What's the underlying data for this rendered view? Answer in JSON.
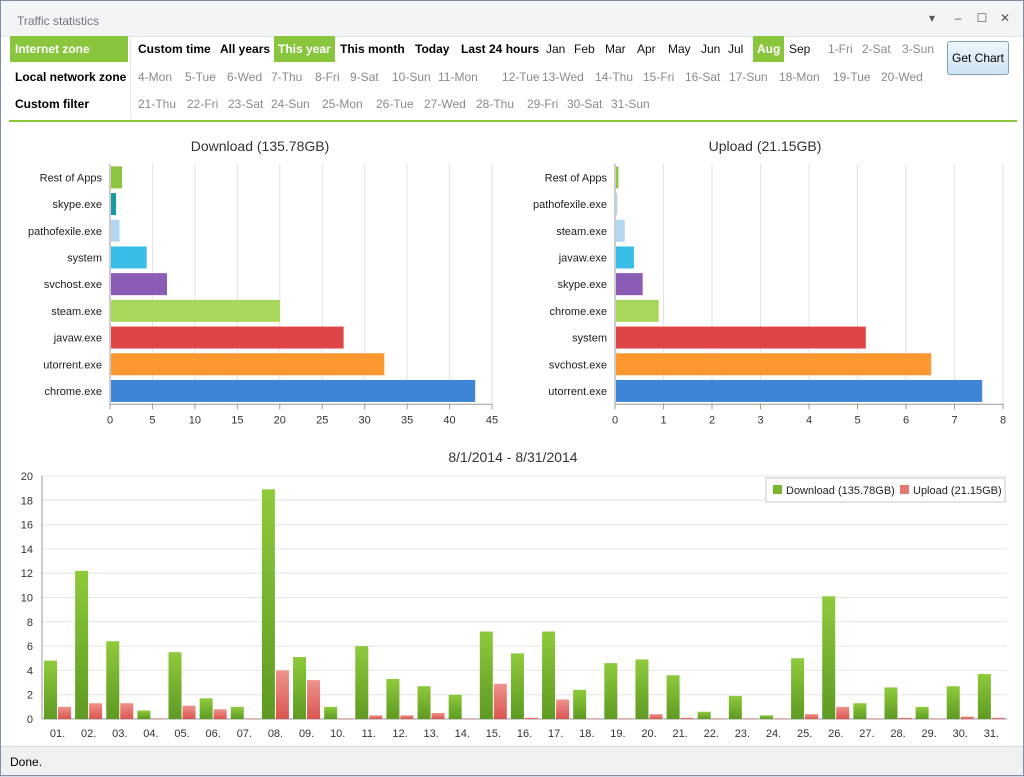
{
  "window": {
    "title": "Traffic statistics",
    "controls": [
      "▾",
      "–",
      "☐",
      "✕"
    ]
  },
  "zones": [
    {
      "label": "Internet zone",
      "active": true
    },
    {
      "label": "Local network zone",
      "active": false
    },
    {
      "label": "Custom filter",
      "active": false
    }
  ],
  "periods": [
    {
      "label": "Custom time",
      "style": "bold"
    },
    {
      "label": "All years",
      "style": "bold"
    },
    {
      "label": "This year",
      "style": "sel"
    },
    {
      "label": "This month",
      "style": "bold"
    },
    {
      "label": "Today",
      "style": "bold"
    },
    {
      "label": "Last 24 hours",
      "style": "bold"
    },
    {
      "label": "Jan",
      "style": "norm"
    },
    {
      "label": "Feb",
      "style": "norm"
    },
    {
      "label": "Mar",
      "style": "norm"
    },
    {
      "label": "Apr",
      "style": "norm"
    },
    {
      "label": "May",
      "style": "norm"
    },
    {
      "label": "Jun",
      "style": "norm"
    },
    {
      "label": "Jul",
      "style": "norm"
    },
    {
      "label": "Aug",
      "style": "sel"
    },
    {
      "label": "Sep",
      "style": "norm"
    }
  ],
  "days": [
    "1-Fri",
    "2-Sat",
    "3-Sun",
    "4-Mon",
    "5-Tue",
    "6-Wed",
    "7-Thu",
    "8-Fri",
    "9-Sat",
    "10-Sun",
    "11-Mon",
    "12-Tue",
    "13-Wed",
    "14-Thu",
    "15-Fri",
    "16-Sat",
    "17-Sun",
    "18-Mon",
    "19-Tue",
    "20-Wed",
    "21-Thu",
    "22-Fri",
    "23-Sat",
    "24-Sun",
    "25-Mon",
    "26-Tue",
    "27-Wed",
    "28-Thu",
    "29-Fri",
    "30-Sat",
    "31-Sun"
  ],
  "get_chart_label": "Get Chart",
  "status": "Done.",
  "colors": {
    "accent": "#8ac53e",
    "download": "#7ab530",
    "upload": "#e87670"
  },
  "chart_data": [
    {
      "type": "bar",
      "orientation": "horizontal",
      "title": "Download (135.78GB)",
      "categories": [
        "Rest of Apps",
        "skype.exe",
        "pathofexile.exe",
        "system",
        "svchost.exe",
        "steam.exe",
        "javaw.exe",
        "utorrent.exe",
        "chrome.exe"
      ],
      "values": [
        1.3,
        0.6,
        1.0,
        4.2,
        6.6,
        19.9,
        27.4,
        32.2,
        42.9
      ],
      "colors": [
        "#8cc63f",
        "#1a9aa0",
        "#b3d7f1",
        "#38bde6",
        "#8a5cb6",
        "#a8d65a",
        "#dd4547",
        "#fd9830",
        "#3f85d6"
      ],
      "xlim": [
        0,
        45
      ],
      "xticks": [
        0,
        5,
        10,
        15,
        20,
        25,
        30,
        35,
        40,
        45
      ],
      "grid": true
    },
    {
      "type": "bar",
      "orientation": "horizontal",
      "title": "Upload (21.15GB)",
      "categories": [
        "Rest of Apps",
        "pathofexile.exe",
        "steam.exe",
        "javaw.exe",
        "skype.exe",
        "chrome.exe",
        "system",
        "svchost.exe",
        "utorrent.exe"
      ],
      "values": [
        0.05,
        0.03,
        0.18,
        0.37,
        0.55,
        0.88,
        5.15,
        6.5,
        7.55
      ],
      "colors": [
        "#8cc63f",
        "#b3d7f1",
        "#b3d7f1",
        "#38bde6",
        "#8a5cb6",
        "#a8d65a",
        "#dd4547",
        "#fd9830",
        "#3f85d6"
      ],
      "xlim": [
        0,
        8
      ],
      "xticks": [
        0,
        1,
        2,
        3,
        4,
        5,
        6,
        7,
        8
      ],
      "grid": true
    },
    {
      "type": "bar",
      "title": "8/1/2014 - 8/31/2014",
      "categories": [
        "01.",
        "02.",
        "03.",
        "04.",
        "05.",
        "06.",
        "07.",
        "08.",
        "09.",
        "10.",
        "11.",
        "12.",
        "13.",
        "14.",
        "15.",
        "16.",
        "17.",
        "18.",
        "19.",
        "20.",
        "21.",
        "22.",
        "23.",
        "24.",
        "25.",
        "26.",
        "27.",
        "28.",
        "29.",
        "30.",
        "31."
      ],
      "series": [
        {
          "name": "Download (135.78GB)",
          "values": [
            4.8,
            12.2,
            6.4,
            0.7,
            5.5,
            1.7,
            1.0,
            18.9,
            5.1,
            1.0,
            6.0,
            3.3,
            2.7,
            2.0,
            7.2,
            5.4,
            7.2,
            2.4,
            4.6,
            4.9,
            3.6,
            0.6,
            1.9,
            0.3,
            5.0,
            10.1,
            1.3,
            2.6,
            1.0,
            2.7,
            3.7
          ]
        },
        {
          "name": "Upload (21.15GB)",
          "values": [
            1.0,
            1.3,
            1.3,
            0.05,
            1.1,
            0.8,
            0.05,
            4.0,
            3.2,
            0.05,
            0.3,
            0.3,
            0.5,
            0.05,
            2.9,
            0.1,
            1.6,
            0.05,
            0.05,
            0.4,
            0.1,
            0.05,
            0.05,
            0.05,
            0.4,
            1.0,
            0.05,
            0.1,
            0.05,
            0.2,
            0.1
          ]
        }
      ],
      "ylim": [
        0,
        20
      ],
      "yticks": [
        0,
        2,
        4,
        6,
        8,
        10,
        12,
        14,
        16,
        18,
        20
      ],
      "legend": "top-right",
      "grid": true
    }
  ]
}
